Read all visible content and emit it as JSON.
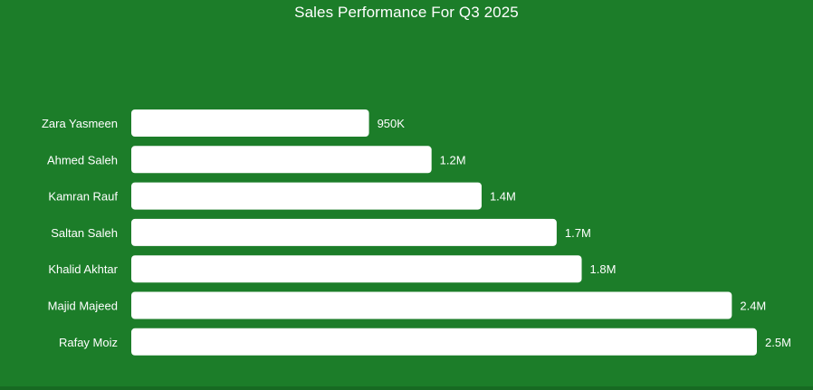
{
  "chart_data": {
    "type": "bar",
    "orientation": "horizontal",
    "title": "Sales Performance For Q3 2025",
    "categories": [
      "Zara Yasmeen",
      "Ahmed Saleh",
      "Kamran Rauf",
      "Saltan Saleh",
      "Khalid Akhtar",
      "Majid Majeed",
      "Rafay Moiz"
    ],
    "values": [
      950000,
      1200000,
      1400000,
      1700000,
      1800000,
      2400000,
      2500000
    ],
    "value_labels": [
      "950K",
      "1.2M",
      "1.4M",
      "1.7M",
      "1.8M",
      "2.4M",
      "2.5M"
    ],
    "xlim": [
      0,
      2500000
    ],
    "grid": false,
    "legend": "none",
    "colors": {
      "background": "#1c7d29",
      "bar": "#ffffff",
      "text": "#ffffff"
    }
  }
}
